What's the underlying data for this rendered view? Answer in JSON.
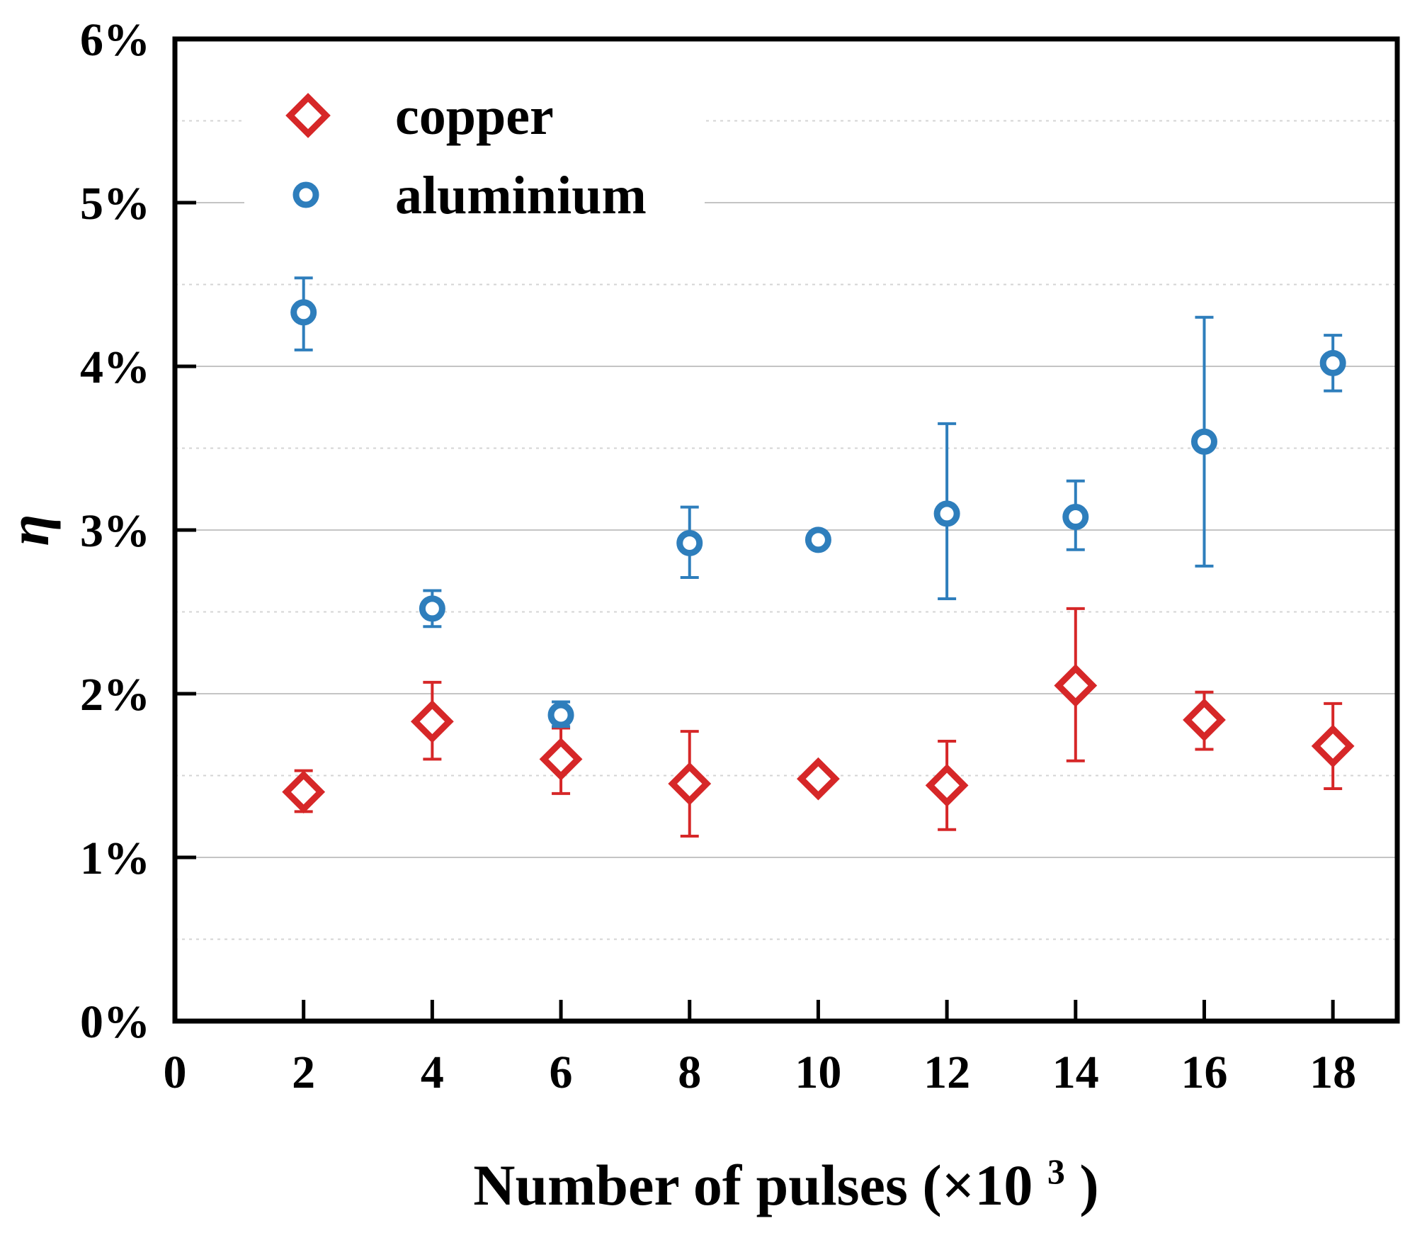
{
  "chart_data": {
    "type": "scatter",
    "title": "",
    "xlabel": "Number of pulses (×10",
    "xlabel_sup": "3",
    "xlabel_close": ")",
    "ylabel": "η",
    "xlim": [
      0,
      19
    ],
    "ylim": [
      0,
      6
    ],
    "xticks": [
      0,
      2,
      4,
      6,
      8,
      10,
      12,
      14,
      16,
      18
    ],
    "xtick_labels": [
      "0",
      "2",
      "4",
      "6",
      "8",
      "10",
      "12",
      "14",
      "16",
      "18"
    ],
    "yticks": [
      0,
      1,
      2,
      3,
      4,
      5,
      6
    ],
    "ytick_labels": [
      "0%",
      "1%",
      "2%",
      "3%",
      "4%",
      "5%",
      "6%"
    ],
    "grid": {
      "major": true,
      "minor_dotted": true
    },
    "legend_position": "top-left",
    "series": [
      {
        "name": "copper",
        "marker": "diamond",
        "color": "#d62728",
        "x": [
          2,
          4,
          6,
          8,
          10,
          12,
          14,
          16,
          18
        ],
        "y": [
          1.4,
          1.83,
          1.6,
          1.45,
          1.48,
          1.44,
          2.05,
          1.84,
          1.68
        ],
        "err_low": [
          1.28,
          1.6,
          1.39,
          1.13,
          1.48,
          1.17,
          1.59,
          1.66,
          1.42
        ],
        "err_high": [
          1.53,
          2.07,
          1.79,
          1.77,
          1.48,
          1.71,
          2.52,
          2.01,
          1.94
        ]
      },
      {
        "name": "aluminium",
        "marker": "circle",
        "color": "#2e7ebc",
        "x": [
          2,
          4,
          6,
          8,
          10,
          12,
          14,
          16,
          18
        ],
        "y": [
          4.33,
          2.52,
          1.87,
          2.92,
          2.94,
          3.1,
          3.08,
          3.54,
          4.02
        ],
        "err_low": [
          4.1,
          2.41,
          1.8,
          2.71,
          2.94,
          2.58,
          2.88,
          2.78,
          3.85
        ],
        "err_high": [
          4.54,
          2.63,
          1.95,
          3.14,
          2.94,
          3.65,
          3.3,
          4.3,
          4.19
        ]
      }
    ]
  }
}
